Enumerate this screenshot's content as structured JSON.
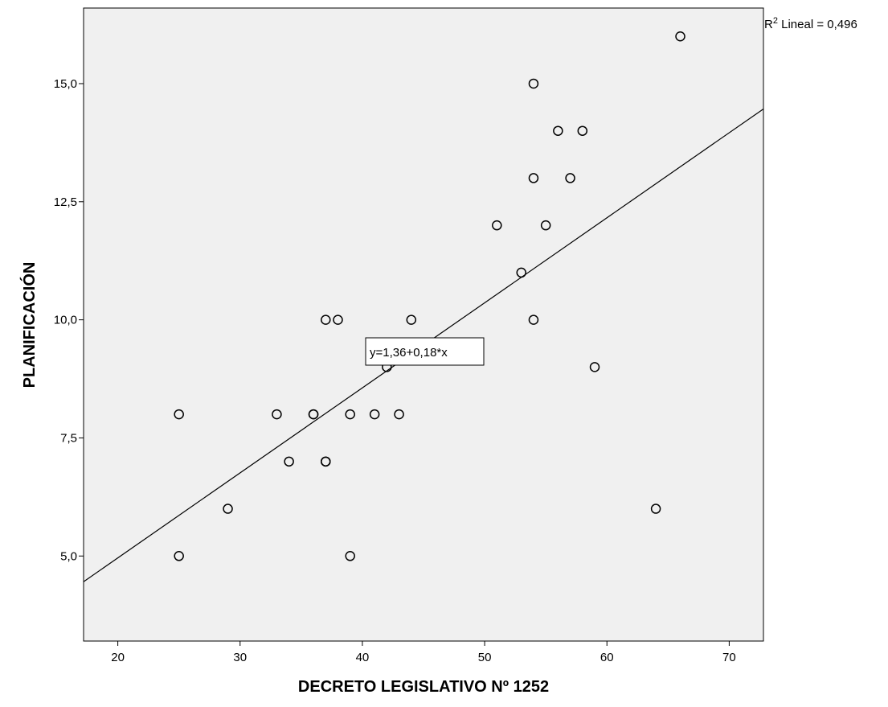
{
  "chart_data": {
    "type": "scatter",
    "xlabel": "DECRETO LEGISLATIVO Nº 1252",
    "ylabel": "PLANIFICACIÓN",
    "xlim": [
      17.2,
      72.8
    ],
    "ylim": [
      3.2,
      16.6
    ],
    "xticks": [
      20,
      30,
      40,
      50,
      60,
      70
    ],
    "xtick_labels": [
      "20",
      "30",
      "40",
      "50",
      "60",
      "70"
    ],
    "yticks": [
      5.0,
      7.5,
      10.0,
      12.5,
      15.0
    ],
    "ytick_labels": [
      "5,0",
      "7,5",
      "10,0",
      "12,5",
      "15,0"
    ],
    "grid": false,
    "background": "#f0f0f0",
    "point_color": "#000000",
    "line_color": "#000000",
    "points": [
      {
        "x": 25,
        "y": 8
      },
      {
        "x": 25,
        "y": 5
      },
      {
        "x": 29,
        "y": 6
      },
      {
        "x": 33,
        "y": 8
      },
      {
        "x": 34,
        "y": 7
      },
      {
        "x": 36,
        "y": 8
      },
      {
        "x": 36,
        "y": 8
      },
      {
        "x": 37,
        "y": 7
      },
      {
        "x": 37,
        "y": 7
      },
      {
        "x": 37,
        "y": 10
      },
      {
        "x": 38,
        "y": 10
      },
      {
        "x": 39,
        "y": 8
      },
      {
        "x": 39,
        "y": 5
      },
      {
        "x": 41,
        "y": 8
      },
      {
        "x": 42,
        "y": 9
      },
      {
        "x": 43,
        "y": 8
      },
      {
        "x": 44,
        "y": 10
      },
      {
        "x": 51,
        "y": 12
      },
      {
        "x": 53,
        "y": 11
      },
      {
        "x": 54,
        "y": 15
      },
      {
        "x": 54,
        "y": 13
      },
      {
        "x": 54,
        "y": 10
      },
      {
        "x": 55,
        "y": 12
      },
      {
        "x": 56,
        "y": 14
      },
      {
        "x": 57,
        "y": 13
      },
      {
        "x": 58,
        "y": 14
      },
      {
        "x": 59,
        "y": 9
      },
      {
        "x": 64,
        "y": 6
      },
      {
        "x": 66,
        "y": 16
      }
    ],
    "fit_line": {
      "intercept": 1.36,
      "slope": 0.18
    },
    "annotations": {
      "equation": "y=1,36+0,18*x",
      "r2_prefix": "R",
      "r2_superscript": "2",
      "r2_text": " Lineal = 0,496"
    }
  }
}
